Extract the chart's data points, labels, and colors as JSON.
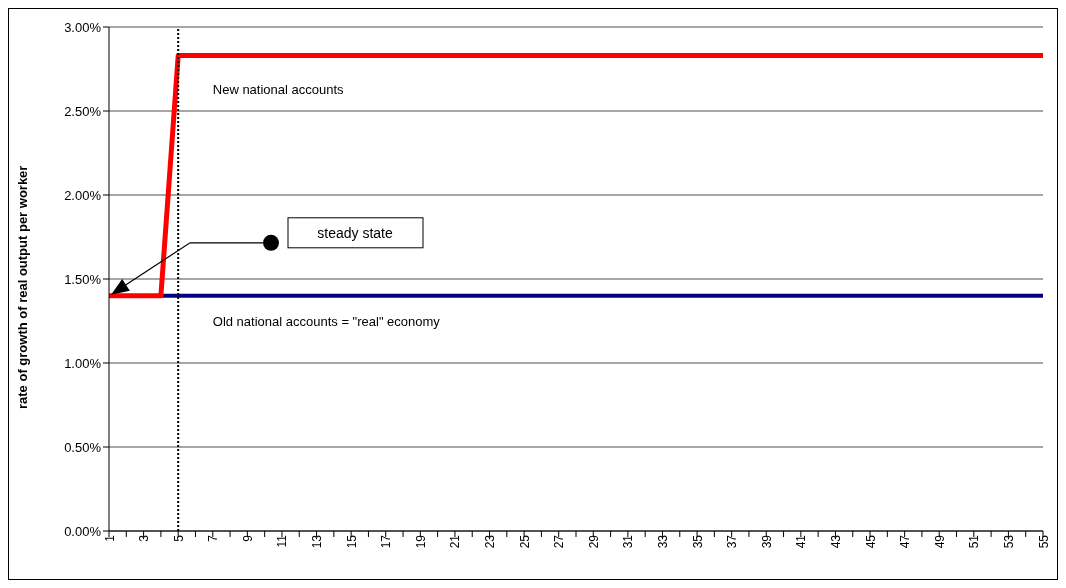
{
  "chart_data": {
    "type": "line",
    "ylabel": "rate of growth of real output per worker",
    "categories": [
      "1",
      null,
      "3",
      null,
      "5",
      null,
      "7",
      null,
      "9",
      null,
      "11",
      null,
      "13",
      null,
      "15",
      null,
      "17",
      null,
      "19",
      null,
      "21",
      null,
      "23",
      null,
      "25",
      null,
      "27",
      null,
      "29",
      null,
      "31",
      null,
      "33",
      null,
      "35",
      null,
      "37",
      null,
      "39",
      null,
      "41",
      null,
      "43",
      null,
      "45",
      null,
      "47",
      null,
      "49",
      null,
      "51",
      null,
      "53",
      null,
      "55"
    ],
    "series": [
      {
        "name": "Old national accounts = \"real\" economy",
        "color": "#000080",
        "values": [
          null,
          null,
          null,
          1.4,
          1.4,
          1.4,
          1.4,
          1.4,
          1.4,
          1.4,
          1.4,
          1.4,
          1.4,
          1.4,
          1.4,
          1.4,
          1.4,
          1.4,
          1.4,
          1.4,
          1.4,
          1.4,
          1.4,
          1.4,
          1.4,
          1.4,
          1.4,
          1.4,
          1.4,
          1.4,
          1.4,
          1.4,
          1.4,
          1.4,
          1.4,
          1.4,
          1.4,
          1.4,
          1.4,
          1.4,
          1.4,
          1.4,
          1.4,
          1.4,
          1.4,
          1.4,
          1.4,
          1.4,
          1.4,
          1.4,
          1.4,
          1.4,
          1.4,
          1.4,
          1.4
        ]
      },
      {
        "name": "New national accounts",
        "color": "#ff0000",
        "values": [
          1.4,
          1.4,
          1.4,
          1.4,
          2.83,
          2.83,
          2.83,
          2.83,
          2.83,
          2.83,
          2.83,
          2.83,
          2.83,
          2.83,
          2.83,
          2.83,
          2.83,
          2.83,
          2.83,
          2.83,
          2.83,
          2.83,
          2.83,
          2.83,
          2.83,
          2.83,
          2.83,
          2.83,
          2.83,
          2.83,
          2.83,
          2.83,
          2.83,
          2.83,
          2.83,
          2.83,
          2.83,
          2.83,
          2.83,
          2.83,
          2.83,
          2.83,
          2.83,
          2.83,
          2.83,
          2.83,
          2.83,
          2.83,
          2.83,
          2.83,
          2.83,
          2.83,
          2.83,
          2.83,
          2.83
        ]
      }
    ],
    "ylim": [
      0,
      3
    ],
    "yticks": [
      {
        "value": 0,
        "label": "0.00%"
      },
      {
        "value": 0.5,
        "label": "0.50%"
      },
      {
        "value": 1,
        "label": "1.00%"
      },
      {
        "value": 1.5,
        "label": "1.50%"
      },
      {
        "value": 2,
        "label": "2.00%"
      },
      {
        "value": 2.5,
        "label": "2.50%"
      },
      {
        "value": 3,
        "label": "3.00%"
      }
    ],
    "grid": "y",
    "legend": false,
    "marker": "none",
    "line_style": "solid",
    "ref_lines": [
      {
        "axis": "x",
        "value": "5",
        "line_style": "dotted",
        "color": "#000000"
      }
    ],
    "annotations": [
      "steady state"
    ]
  }
}
